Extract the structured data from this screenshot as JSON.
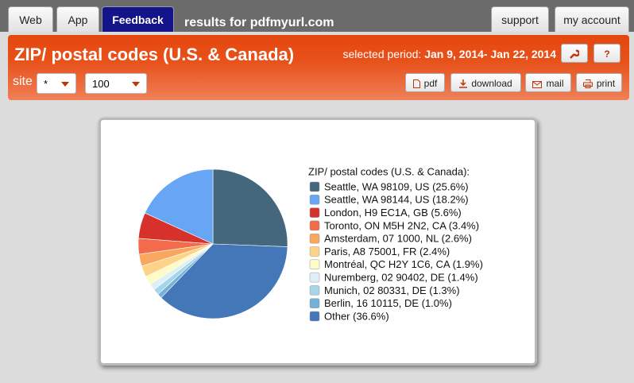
{
  "tabs": [
    "Web",
    "App",
    "Feedback"
  ],
  "results": "results for pdfmyurl.com",
  "nav": [
    "support",
    "my account"
  ],
  "header": {
    "title": "ZIP/ postal codes (U.S. & Canada)",
    "period_label": "selected period:",
    "period": "Jan 9, 2014- Jan 22, 2014",
    "help": "?"
  },
  "toolbar": {
    "site_label": "site",
    "site_value": "*",
    "limit_value": "100",
    "buttons": [
      "pdf",
      "download",
      "mail",
      "print"
    ]
  },
  "chart_data": {
    "type": "pie",
    "title": "ZIP/ postal codes (U.S. & Canada):",
    "categories": [
      "Seattle, WA 98109, US (25.6%)",
      "Seattle, WA 98144, US (18.2%)",
      "London, H9 EC1A, GB (5.6%)",
      "Toronto, ON M5H 2N2, CA (3.4%)",
      "Amsterdam, 07 1000, NL (2.6%)",
      "Paris, A8 75001, FR (2.4%)",
      "Montréal, QC H2Y 1C6, CA (1.9%)",
      "Nuremberg, 02 90402, DE (1.4%)",
      "Munich, 02 80331, DE (1.3%)",
      "Berlin, 16 10115, DE (1.0%)",
      "Other (36.6%)"
    ],
    "values": [
      25.6,
      18.2,
      5.6,
      3.4,
      2.6,
      2.4,
      1.9,
      1.4,
      1.3,
      1.0,
      36.6
    ],
    "colors": [
      "#44677e",
      "#66a6f5",
      "#d7312b",
      "#f26b4a",
      "#f9a65f",
      "#fdd38a",
      "#fffbc7",
      "#dcf0f5",
      "#a6d4e8",
      "#74b0d7",
      "#4477b8"
    ]
  }
}
